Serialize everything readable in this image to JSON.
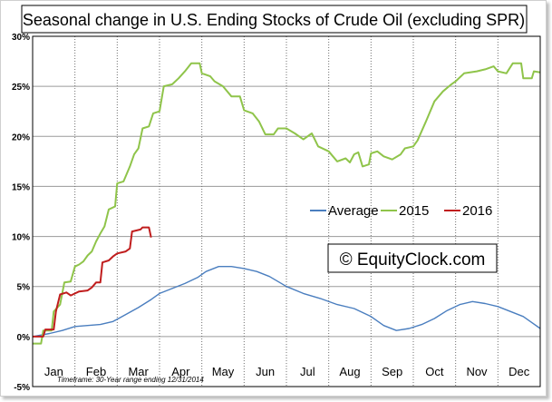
{
  "chart_data": {
    "type": "line",
    "title": "Seasonal change in U.S. Ending Stocks of Crude Oil (excluding SPR)",
    "xlabel": "",
    "ylabel": "",
    "ylim": [
      -5,
      30
    ],
    "yticks": [
      {
        "value": 30,
        "label": "30%"
      },
      {
        "value": 25,
        "label": "25%"
      },
      {
        "value": 20,
        "label": "20%"
      },
      {
        "value": 15,
        "label": "15%"
      },
      {
        "value": 10,
        "label": "10%"
      },
      {
        "value": 5,
        "label": "5%"
      },
      {
        "value": 0,
        "label": "0%"
      },
      {
        "value": -5,
        "label": "-5%"
      }
    ],
    "months": [
      "Jan",
      "Feb",
      "Mar",
      "Apr",
      "May",
      "Jun",
      "Jul",
      "Aug",
      "Sep",
      "Oct",
      "Nov",
      "Dec"
    ],
    "grid": true,
    "legend": {
      "position": "middle-right"
    },
    "series": [
      {
        "name": "Average",
        "color": "#4a7ebf",
        "points": [
          [
            0.0,
            0.0
          ],
          [
            0.4,
            0.3
          ],
          [
            0.7,
            0.6
          ],
          [
            1.0,
            1.0
          ],
          [
            1.3,
            1.1
          ],
          [
            1.6,
            1.2
          ],
          [
            1.9,
            1.5
          ],
          [
            2.2,
            2.2
          ],
          [
            2.5,
            2.9
          ],
          [
            2.8,
            3.7
          ],
          [
            3.0,
            4.3
          ],
          [
            3.3,
            4.8
          ],
          [
            3.6,
            5.3
          ],
          [
            3.9,
            5.9
          ],
          [
            4.1,
            6.5
          ],
          [
            4.4,
            7.0
          ],
          [
            4.7,
            7.0
          ],
          [
            5.0,
            6.8
          ],
          [
            5.3,
            6.5
          ],
          [
            5.6,
            6.0
          ],
          [
            6.0,
            5.0
          ],
          [
            6.4,
            4.3
          ],
          [
            6.8,
            3.8
          ],
          [
            7.2,
            3.2
          ],
          [
            7.6,
            2.8
          ],
          [
            8.0,
            2.0
          ],
          [
            8.3,
            1.1
          ],
          [
            8.6,
            0.6
          ],
          [
            8.9,
            0.8
          ],
          [
            9.2,
            1.2
          ],
          [
            9.5,
            1.8
          ],
          [
            9.8,
            2.6
          ],
          [
            10.1,
            3.2
          ],
          [
            10.4,
            3.5
          ],
          [
            10.7,
            3.3
          ],
          [
            11.0,
            3.0
          ],
          [
            11.3,
            2.5
          ],
          [
            11.6,
            2.0
          ],
          [
            11.8,
            1.4
          ],
          [
            12.0,
            0.8
          ]
        ]
      },
      {
        "name": "2015",
        "color": "#8fc44a",
        "points": [
          [
            0.0,
            -0.7
          ],
          [
            0.2,
            -0.7
          ],
          [
            0.25,
            0.6
          ],
          [
            0.45,
            0.6
          ],
          [
            0.5,
            2.5
          ],
          [
            0.65,
            3.2
          ],
          [
            0.75,
            5.4
          ],
          [
            0.9,
            5.5
          ],
          [
            1.0,
            7.0
          ],
          [
            1.1,
            7.2
          ],
          [
            1.2,
            7.5
          ],
          [
            1.3,
            8.1
          ],
          [
            1.4,
            8.5
          ],
          [
            1.5,
            9.5
          ],
          [
            1.6,
            10.3
          ],
          [
            1.7,
            11.0
          ],
          [
            1.8,
            12.7
          ],
          [
            1.95,
            13.0
          ],
          [
            2.0,
            15.3
          ],
          [
            2.15,
            15.5
          ],
          [
            2.3,
            17.0
          ],
          [
            2.4,
            18.2
          ],
          [
            2.5,
            18.8
          ],
          [
            2.6,
            20.8
          ],
          [
            2.75,
            21.0
          ],
          [
            2.85,
            22.3
          ],
          [
            3.0,
            22.5
          ],
          [
            3.1,
            25.0
          ],
          [
            3.3,
            25.2
          ],
          [
            3.45,
            25.8
          ],
          [
            3.6,
            26.5
          ],
          [
            3.75,
            27.3
          ],
          [
            3.95,
            27.3
          ],
          [
            4.0,
            26.3
          ],
          [
            4.2,
            26.0
          ],
          [
            4.3,
            25.5
          ],
          [
            4.5,
            25.0
          ],
          [
            4.7,
            24.0
          ],
          [
            4.9,
            24.0
          ],
          [
            5.0,
            22.6
          ],
          [
            5.2,
            22.3
          ],
          [
            5.35,
            21.5
          ],
          [
            5.5,
            20.2
          ],
          [
            5.7,
            20.2
          ],
          [
            5.8,
            20.8
          ],
          [
            6.0,
            20.8
          ],
          [
            6.2,
            20.3
          ],
          [
            6.4,
            19.7
          ],
          [
            6.6,
            20.3
          ],
          [
            6.75,
            19.0
          ],
          [
            7.0,
            18.5
          ],
          [
            7.1,
            18.0
          ],
          [
            7.2,
            17.5
          ],
          [
            7.4,
            17.8
          ],
          [
            7.5,
            17.4
          ],
          [
            7.6,
            18.2
          ],
          [
            7.7,
            18.4
          ],
          [
            7.8,
            17.0
          ],
          [
            7.95,
            17.2
          ],
          [
            8.0,
            18.3
          ],
          [
            8.15,
            18.5
          ],
          [
            8.3,
            18.0
          ],
          [
            8.5,
            17.7
          ],
          [
            8.7,
            18.2
          ],
          [
            8.8,
            18.8
          ],
          [
            9.0,
            19.0
          ],
          [
            9.1,
            19.6
          ],
          [
            9.3,
            21.5
          ],
          [
            9.5,
            23.5
          ],
          [
            9.7,
            24.5
          ],
          [
            9.9,
            25.2
          ],
          [
            10.0,
            25.5
          ],
          [
            10.2,
            26.3
          ],
          [
            10.5,
            26.5
          ],
          [
            10.7,
            26.7
          ],
          [
            10.9,
            27.0
          ],
          [
            11.0,
            26.5
          ],
          [
            11.2,
            26.3
          ],
          [
            11.35,
            27.3
          ],
          [
            11.55,
            27.3
          ],
          [
            11.6,
            25.8
          ],
          [
            11.8,
            25.8
          ],
          [
            11.85,
            26.5
          ],
          [
            12.0,
            26.4
          ]
        ]
      },
      {
        "name": "2016",
        "color": "#c01d1d",
        "points": [
          [
            0.0,
            0.0
          ],
          [
            0.25,
            0.0
          ],
          [
            0.3,
            0.7
          ],
          [
            0.5,
            0.7
          ],
          [
            0.55,
            2.5
          ],
          [
            0.65,
            4.2
          ],
          [
            0.8,
            4.4
          ],
          [
            0.9,
            4.1
          ],
          [
            1.0,
            4.3
          ],
          [
            1.1,
            4.5
          ],
          [
            1.3,
            4.6
          ],
          [
            1.4,
            4.9
          ],
          [
            1.5,
            5.4
          ],
          [
            1.6,
            5.4
          ],
          [
            1.65,
            7.4
          ],
          [
            1.8,
            7.6
          ],
          [
            1.9,
            8.0
          ],
          [
            2.0,
            8.3
          ],
          [
            2.2,
            8.5
          ],
          [
            2.3,
            8.8
          ],
          [
            2.35,
            10.5
          ],
          [
            2.55,
            10.7
          ],
          [
            2.6,
            10.9
          ],
          [
            2.75,
            10.9
          ],
          [
            2.8,
            9.9
          ]
        ]
      }
    ],
    "annotations": {
      "watermark": "© EquityClock.com",
      "footnote": "Timeframe: 30-Year range ending 12/31/2014"
    }
  }
}
